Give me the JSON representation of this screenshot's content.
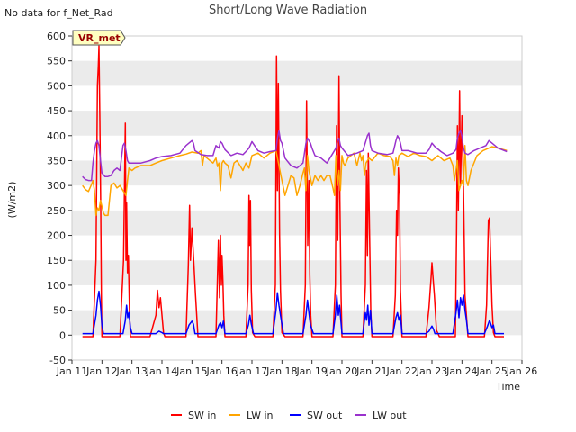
{
  "corner_note": "No data for f_Net_Rad",
  "badge": "VR_met",
  "colors": {
    "sw_in": "#ff0000",
    "lw_in": "#ffa500",
    "sw_out": "#0000ff",
    "lw_out": "#9a32cd",
    "band": "#ebebeb",
    "badge_bg": "#ffffc0",
    "badge_text": "#990000"
  },
  "chart_data": {
    "type": "line",
    "title": "Short/Long Wave Radiation",
    "xlabel": "Time",
    "ylabel": "(W/m2)",
    "xlim": [
      11,
      26
    ],
    "ylim": [
      -50,
      600
    ],
    "x_ticks": [
      {
        "v": 11,
        "label": "Jan 11"
      },
      {
        "v": 12,
        "label": "Jan 12"
      },
      {
        "v": 13,
        "label": "Jan 13"
      },
      {
        "v": 14,
        "label": "Jan 14"
      },
      {
        "v": 15,
        "label": "Jan 15"
      },
      {
        "v": 16,
        "label": "Jan 16"
      },
      {
        "v": 17,
        "label": "Jan 17"
      },
      {
        "v": 18,
        "label": "Jan 18"
      },
      {
        "v": 19,
        "label": "Jan 19"
      },
      {
        "v": 20,
        "label": "Jan 20"
      },
      {
        "v": 21,
        "label": "Jan 21"
      },
      {
        "v": 22,
        "label": "Jan 22"
      },
      {
        "v": 23,
        "label": "Jan 23"
      },
      {
        "v": 24,
        "label": "Jan 24"
      },
      {
        "v": 25,
        "label": "Jan 25"
      },
      {
        "v": 26,
        "label": "Jan 26"
      }
    ],
    "y_ticks": [
      -50,
      0,
      50,
      100,
      150,
      200,
      250,
      300,
      350,
      400,
      450,
      500,
      550,
      600
    ],
    "grid": "horizontal bands",
    "legend_position": "bottom",
    "series": [
      {
        "name": "SW in",
        "key": "sw_in",
        "x": [
          11.35,
          11.7,
          11.8,
          11.85,
          11.88,
          11.9,
          11.93,
          11.96,
          11.98,
          12.0,
          12.05,
          12.1,
          12.2,
          12.3,
          12.6,
          12.72,
          12.78,
          12.8,
          12.82,
          12.85,
          12.88,
          12.92,
          12.95,
          13.0,
          13.1,
          13.3,
          13.6,
          13.8,
          13.85,
          13.9,
          13.95,
          14.0,
          14.05,
          14.1,
          14.2,
          14.5,
          14.8,
          14.88,
          14.92,
          14.95,
          15.0,
          15.05,
          15.08,
          15.12,
          15.2,
          15.3,
          15.8,
          15.88,
          15.92,
          15.95,
          15.98,
          16.0,
          16.03,
          16.06,
          16.1,
          16.2,
          16.3,
          16.8,
          16.87,
          16.9,
          16.92,
          16.95,
          16.98,
          17.02,
          17.1,
          17.3,
          17.7,
          17.78,
          17.82,
          17.85,
          17.88,
          17.92,
          17.95,
          18.0,
          18.1,
          18.3,
          18.7,
          18.78,
          18.82,
          18.86,
          18.9,
          18.93,
          18.96,
          19.0,
          19.1,
          19.3,
          19.7,
          19.78,
          19.82,
          19.86,
          19.9,
          19.93,
          19.97,
          20.0,
          20.1,
          20.3,
          20.7,
          20.78,
          20.82,
          20.85,
          20.88,
          20.92,
          20.96,
          21.0,
          21.1,
          21.3,
          21.7,
          21.78,
          21.82,
          21.85,
          21.88,
          21.92,
          21.95,
          22.0,
          22.1,
          22.3,
          22.8,
          22.9,
          22.97,
          23.0,
          23.03,
          23.08,
          23.15,
          23.25,
          23.5,
          23.7,
          23.78,
          23.82,
          23.85,
          23.88,
          23.92,
          23.95,
          24.0,
          24.05,
          24.1,
          24.2,
          24.4,
          24.6,
          24.75,
          24.82,
          24.88,
          24.92,
          24.96,
          25.0,
          25.05,
          25.1,
          25.4
        ],
        "y": [
          -3,
          -3,
          150,
          500,
          540,
          580,
          430,
          250,
          80,
          -3,
          -3,
          -3,
          -3,
          -3,
          -3,
          150,
          425,
          150,
          265,
          125,
          160,
          40,
          -3,
          -3,
          -3,
          -3,
          -3,
          40,
          90,
          55,
          75,
          40,
          5,
          -3,
          -3,
          -3,
          -3,
          140,
          260,
          150,
          215,
          160,
          125,
          80,
          -3,
          -3,
          -3,
          190,
          75,
          200,
          100,
          160,
          110,
          40,
          -3,
          -3,
          -3,
          -3,
          100,
          280,
          180,
          270,
          90,
          5,
          -3,
          -3,
          -3,
          100,
          560,
          290,
          505,
          200,
          90,
          5,
          -3,
          -3,
          -3,
          100,
          470,
          180,
          310,
          120,
          40,
          -3,
          -3,
          -3,
          -3,
          100,
          420,
          190,
          520,
          270,
          80,
          -3,
          -3,
          -3,
          -3,
          100,
          330,
          160,
          365,
          200,
          50,
          -3,
          -3,
          -3,
          -3,
          80,
          250,
          200,
          335,
          280,
          90,
          -3,
          -3,
          -3,
          -3,
          55,
          115,
          145,
          120,
          80,
          10,
          -3,
          -3,
          -3,
          -3,
          200,
          420,
          250,
          490,
          300,
          440,
          300,
          80,
          -3,
          -3,
          -3,
          -3,
          60,
          230,
          235,
          150,
          60,
          5,
          -3,
          -3
        ]
      },
      {
        "name": "LW in",
        "key": "lw_in",
        "x": [
          11.35,
          11.45,
          11.55,
          11.65,
          11.7,
          11.75,
          11.8,
          11.85,
          11.9,
          11.95,
          12.0,
          12.05,
          12.1,
          12.2,
          12.3,
          12.4,
          12.5,
          12.6,
          12.7,
          12.8,
          12.85,
          12.9,
          13.0,
          13.1,
          13.3,
          13.6,
          13.8,
          14.0,
          14.3,
          14.6,
          14.8,
          15.0,
          15.2,
          15.3,
          15.35,
          15.4,
          15.5,
          15.7,
          15.8,
          15.85,
          15.9,
          15.95,
          16.0,
          16.05,
          16.1,
          16.2,
          16.3,
          16.4,
          16.5,
          16.6,
          16.7,
          16.8,
          16.9,
          17.0,
          17.2,
          17.4,
          17.6,
          17.8,
          17.9,
          18.0,
          18.1,
          18.2,
          18.3,
          18.4,
          18.5,
          18.6,
          18.7,
          18.75,
          18.8,
          18.85,
          18.9,
          19.0,
          19.1,
          19.2,
          19.3,
          19.4,
          19.5,
          19.6,
          19.7,
          19.75,
          19.8,
          19.85,
          19.9,
          19.95,
          20.0,
          20.05,
          20.1,
          20.2,
          20.4,
          20.5,
          20.6,
          20.65,
          20.7,
          20.75,
          20.8,
          20.9,
          21.0,
          21.2,
          21.4,
          21.6,
          21.7,
          21.75,
          21.8,
          21.85,
          21.9,
          22.0,
          22.2,
          22.4,
          22.6,
          22.8,
          23.0,
          23.2,
          23.4,
          23.6,
          23.7,
          23.75,
          23.8,
          23.85,
          23.9,
          24.0,
          24.05,
          24.1,
          24.15,
          24.2,
          24.3,
          24.5,
          24.7,
          24.9,
          25.0,
          25.2,
          25.5
        ],
        "y": [
          300,
          292,
          288,
          302,
          310,
          290,
          240,
          255,
          250,
          270,
          258,
          245,
          240,
          240,
          300,
          305,
          295,
          300,
          290,
          280,
          310,
          335,
          330,
          335,
          340,
          340,
          345,
          350,
          355,
          360,
          363,
          367,
          365,
          370,
          340,
          360,
          355,
          345,
          355,
          338,
          345,
          290,
          345,
          350,
          345,
          340,
          315,
          345,
          350,
          340,
          330,
          345,
          335,
          360,
          365,
          355,
          365,
          370,
          340,
          310,
          280,
          300,
          320,
          315,
          280,
          300,
          325,
          335,
          290,
          360,
          330,
          300,
          320,
          310,
          320,
          310,
          320,
          320,
          295,
          280,
          360,
          300,
          330,
          290,
          360,
          345,
          340,
          355,
          365,
          340,
          365,
          350,
          360,
          320,
          345,
          355,
          350,
          365,
          360,
          358,
          350,
          320,
          355,
          340,
          360,
          365,
          358,
          365,
          360,
          358,
          350,
          360,
          350,
          355,
          340,
          310,
          330,
          350,
          290,
          310,
          300,
          380,
          310,
          300,
          330,
          360,
          370,
          375,
          378,
          375,
          370
        ]
      },
      {
        "name": "SW out",
        "key": "sw_out",
        "x": [
          11.35,
          11.7,
          11.8,
          11.85,
          11.9,
          11.95,
          12.0,
          12.05,
          12.1,
          12.3,
          12.7,
          12.78,
          12.82,
          12.86,
          12.9,
          12.95,
          13.0,
          13.3,
          13.8,
          13.9,
          14.0,
          14.05,
          14.1,
          14.4,
          14.8,
          14.9,
          15.0,
          15.05,
          15.1,
          15.3,
          15.8,
          15.9,
          15.95,
          16.0,
          16.05,
          16.1,
          16.3,
          16.8,
          16.88,
          16.93,
          16.98,
          17.05,
          17.3,
          17.7,
          17.8,
          17.85,
          17.9,
          17.95,
          18.05,
          18.3,
          18.7,
          18.8,
          18.85,
          18.9,
          18.95,
          19.05,
          19.3,
          19.7,
          19.78,
          19.83,
          19.88,
          19.92,
          20.0,
          20.3,
          20.7,
          20.78,
          20.82,
          20.86,
          20.9,
          20.95,
          21.0,
          21.3,
          21.7,
          21.8,
          21.85,
          21.9,
          21.95,
          22.0,
          22.3,
          22.8,
          22.9,
          23.0,
          23.05,
          23.1,
          23.3,
          23.7,
          23.8,
          23.85,
          23.9,
          23.95,
          24.0,
          24.05,
          24.1,
          24.15,
          24.2,
          24.5,
          24.75,
          24.85,
          24.92,
          25.0,
          25.05,
          25.1,
          25.4
        ],
        "y": [
          3,
          3,
          40,
          70,
          88,
          60,
          20,
          3,
          3,
          3,
          3,
          30,
          60,
          35,
          45,
          15,
          3,
          3,
          3,
          8,
          5,
          3,
          3,
          3,
          3,
          20,
          28,
          22,
          3,
          3,
          3,
          20,
          25,
          15,
          28,
          3,
          3,
          3,
          20,
          40,
          22,
          3,
          3,
          3,
          50,
          85,
          60,
          40,
          3,
          3,
          3,
          40,
          70,
          45,
          20,
          3,
          3,
          3,
          40,
          80,
          40,
          60,
          3,
          3,
          3,
          45,
          30,
          60,
          20,
          50,
          3,
          3,
          3,
          35,
          45,
          30,
          40,
          3,
          3,
          3,
          8,
          18,
          12,
          3,
          3,
          3,
          45,
          70,
          35,
          75,
          60,
          80,
          50,
          30,
          3,
          3,
          3,
          18,
          30,
          15,
          20,
          3,
          3
        ]
      },
      {
        "name": "LW out",
        "key": "lw_out",
        "x": [
          11.35,
          11.45,
          11.55,
          11.65,
          11.7,
          11.75,
          11.8,
          11.85,
          11.9,
          11.95,
          12.0,
          12.1,
          12.2,
          12.3,
          12.4,
          12.5,
          12.6,
          12.7,
          12.75,
          12.8,
          12.85,
          12.9,
          13.0,
          13.1,
          13.3,
          13.6,
          13.8,
          14.0,
          14.3,
          14.6,
          14.8,
          14.9,
          15.0,
          15.05,
          15.1,
          15.3,
          15.5,
          15.7,
          15.8,
          15.9,
          15.95,
          16.0,
          16.1,
          16.3,
          16.5,
          16.7,
          16.8,
          16.9,
          17.0,
          17.2,
          17.4,
          17.6,
          17.8,
          17.85,
          17.9,
          17.95,
          18.0,
          18.1,
          18.3,
          18.5,
          18.7,
          18.8,
          18.85,
          18.9,
          18.95,
          19.0,
          19.1,
          19.3,
          19.5,
          19.7,
          19.8,
          19.85,
          19.9,
          19.95,
          20.0,
          20.2,
          20.5,
          20.7,
          20.8,
          20.85,
          20.9,
          20.95,
          21.0,
          21.2,
          21.5,
          21.7,
          21.8,
          21.85,
          21.9,
          21.95,
          22.0,
          22.2,
          22.5,
          22.8,
          22.9,
          23.0,
          23.1,
          23.3,
          23.5,
          23.7,
          23.8,
          23.85,
          23.9,
          23.95,
          24.0,
          24.05,
          24.1,
          24.2,
          24.4,
          24.6,
          24.8,
          24.9,
          25.0,
          25.2,
          25.5
        ],
        "y": [
          318,
          312,
          310,
          310,
          345,
          370,
          385,
          390,
          380,
          350,
          325,
          318,
          318,
          320,
          330,
          335,
          330,
          380,
          385,
          370,
          350,
          345,
          345,
          345,
          345,
          350,
          355,
          358,
          360,
          365,
          380,
          385,
          390,
          385,
          370,
          362,
          360,
          360,
          380,
          375,
          388,
          385,
          372,
          360,
          365,
          362,
          368,
          375,
          388,
          370,
          365,
          368,
          370,
          395,
          410,
          390,
          385,
          355,
          340,
          335,
          345,
          385,
          395,
          390,
          385,
          375,
          360,
          355,
          345,
          365,
          375,
          390,
          395,
          380,
          375,
          360,
          365,
          370,
          390,
          400,
          405,
          380,
          370,
          365,
          362,
          365,
          390,
          400,
          395,
          385,
          370,
          370,
          365,
          365,
          372,
          385,
          378,
          368,
          360,
          365,
          372,
          395,
          405,
          410,
          400,
          375,
          365,
          362,
          370,
          375,
          380,
          390,
          385,
          375,
          368
        ]
      }
    ]
  }
}
